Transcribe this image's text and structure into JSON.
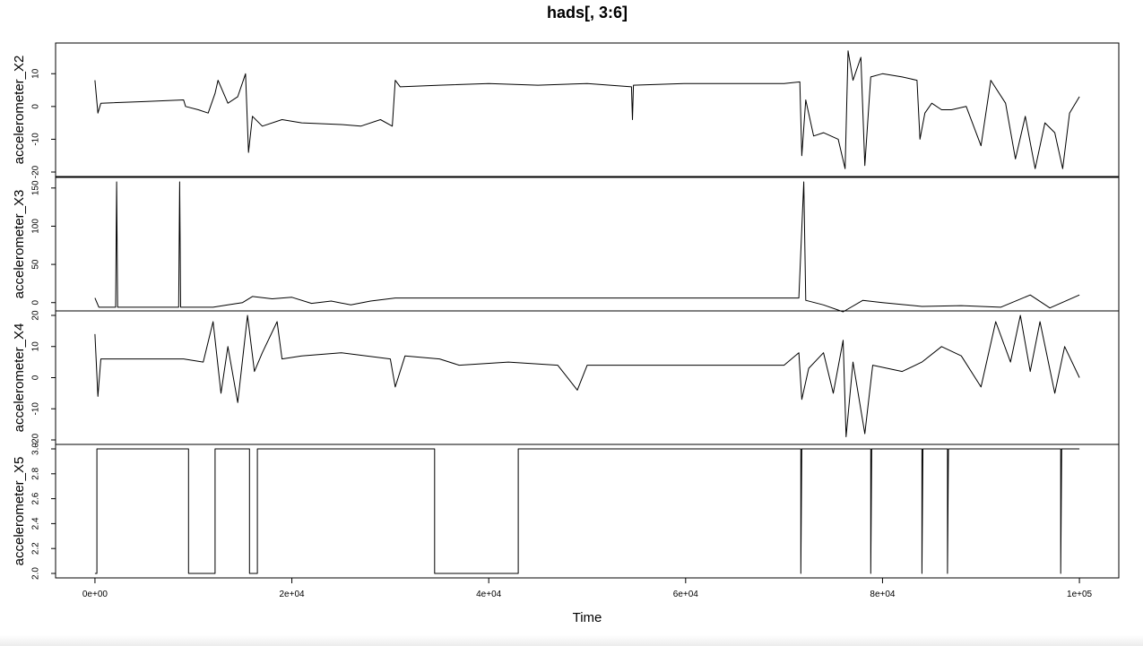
{
  "chart_data": {
    "type": "line",
    "title": "hads[, 3:6]",
    "xlabel": "Time",
    "xlim": [
      -4000,
      104000
    ],
    "x_ticks": [
      {
        "value": 0,
        "label": "0e+00"
      },
      {
        "value": 20000,
        "label": "2e+04"
      },
      {
        "value": 40000,
        "label": "4e+04"
      },
      {
        "value": 60000,
        "label": "6e+04"
      },
      {
        "value": 80000,
        "label": "8e+04"
      },
      {
        "value": 100000,
        "label": "1e+05"
      }
    ],
    "panels": [
      {
        "name": "accelerometer_X2",
        "ylabel": "accelerometer_X2",
        "ylim": [
          -20,
          18
        ],
        "y_ticks": [
          {
            "value": -20,
            "label": "-20"
          },
          {
            "value": -10,
            "label": "-10"
          },
          {
            "value": 0,
            "label": "0"
          },
          {
            "value": 10,
            "label": "10"
          }
        ],
        "series": [
          {
            "x": 0,
            "y": 8
          },
          {
            "x": 300,
            "y": -2
          },
          {
            "x": 600,
            "y": 1
          },
          {
            "x": 5000,
            "y": 1.5
          },
          {
            "x": 9000,
            "y": 2
          },
          {
            "x": 9200,
            "y": 0
          },
          {
            "x": 10500,
            "y": -1
          },
          {
            "x": 11500,
            "y": -2
          },
          {
            "x": 12200,
            "y": 4
          },
          {
            "x": 12500,
            "y": 8
          },
          {
            "x": 13500,
            "y": 1
          },
          {
            "x": 14500,
            "y": 3
          },
          {
            "x": 15300,
            "y": 10
          },
          {
            "x": 15600,
            "y": -14
          },
          {
            "x": 16000,
            "y": -3
          },
          {
            "x": 17000,
            "y": -6
          },
          {
            "x": 19000,
            "y": -4
          },
          {
            "x": 21000,
            "y": -5
          },
          {
            "x": 25000,
            "y": -5.5
          },
          {
            "x": 27000,
            "y": -6
          },
          {
            "x": 29000,
            "y": -4
          },
          {
            "x": 30200,
            "y": -6
          },
          {
            "x": 30500,
            "y": 8
          },
          {
            "x": 31000,
            "y": 6
          },
          {
            "x": 35000,
            "y": 6.5
          },
          {
            "x": 40000,
            "y": 7
          },
          {
            "x": 45000,
            "y": 6.5
          },
          {
            "x": 50000,
            "y": 7
          },
          {
            "x": 54500,
            "y": 6
          },
          {
            "x": 54600,
            "y": -4
          },
          {
            "x": 54700,
            "y": 6.5
          },
          {
            "x": 60000,
            "y": 7
          },
          {
            "x": 65000,
            "y": 7
          },
          {
            "x": 70000,
            "y": 7
          },
          {
            "x": 71600,
            "y": 7.5
          },
          {
            "x": 71800,
            "y": -15
          },
          {
            "x": 72200,
            "y": 2
          },
          {
            "x": 73000,
            "y": -9
          },
          {
            "x": 74000,
            "y": -8
          },
          {
            "x": 75500,
            "y": -10
          },
          {
            "x": 76200,
            "y": -19
          },
          {
            "x": 76500,
            "y": 17
          },
          {
            "x": 77000,
            "y": 8
          },
          {
            "x": 77800,
            "y": 15
          },
          {
            "x": 78200,
            "y": -18
          },
          {
            "x": 78800,
            "y": 9
          },
          {
            "x": 80000,
            "y": 10
          },
          {
            "x": 82000,
            "y": 9
          },
          {
            "x": 83500,
            "y": 8
          },
          {
            "x": 83800,
            "y": -10
          },
          {
            "x": 84300,
            "y": -2
          },
          {
            "x": 85000,
            "y": 1
          },
          {
            "x": 86000,
            "y": -1
          },
          {
            "x": 87000,
            "y": -1
          },
          {
            "x": 88500,
            "y": 0
          },
          {
            "x": 89500,
            "y": -8
          },
          {
            "x": 90000,
            "y": -12
          },
          {
            "x": 91000,
            "y": 8
          },
          {
            "x": 92500,
            "y": 1
          },
          {
            "x": 93500,
            "y": -16
          },
          {
            "x": 94500,
            "y": -3
          },
          {
            "x": 95500,
            "y": -19
          },
          {
            "x": 96500,
            "y": -5
          },
          {
            "x": 97500,
            "y": -8
          },
          {
            "x": 98300,
            "y": -19
          },
          {
            "x": 99000,
            "y": -2
          },
          {
            "x": 100000,
            "y": 3
          }
        ]
      },
      {
        "name": "accelerometer_X3",
        "ylabel": "accelerometer_X3",
        "ylim": [
          -5,
          158
        ],
        "y_ticks": [
          {
            "value": 0,
            "label": "0"
          },
          {
            "value": 50,
            "label": "50"
          },
          {
            "value": 100,
            "label": "100"
          },
          {
            "value": 150,
            "label": "150"
          }
        ],
        "series": [
          {
            "x": 0,
            "y": 6
          },
          {
            "x": 400,
            "y": -6
          },
          {
            "x": 2100,
            "y": -6
          },
          {
            "x": 2200,
            "y": 158
          },
          {
            "x": 2300,
            "y": -6
          },
          {
            "x": 8500,
            "y": -6
          },
          {
            "x": 8600,
            "y": 158
          },
          {
            "x": 8700,
            "y": -6
          },
          {
            "x": 12000,
            "y": -6
          },
          {
            "x": 13500,
            "y": -3
          },
          {
            "x": 15000,
            "y": 0
          },
          {
            "x": 16000,
            "y": 8
          },
          {
            "x": 18000,
            "y": 5
          },
          {
            "x": 20000,
            "y": 7
          },
          {
            "x": 22000,
            "y": -1
          },
          {
            "x": 24000,
            "y": 2
          },
          {
            "x": 26000,
            "y": -3
          },
          {
            "x": 28000,
            "y": 2
          },
          {
            "x": 30500,
            "y": 6
          },
          {
            "x": 40000,
            "y": 6
          },
          {
            "x": 50000,
            "y": 6
          },
          {
            "x": 60000,
            "y": 6
          },
          {
            "x": 71500,
            "y": 6
          },
          {
            "x": 72000,
            "y": 158
          },
          {
            "x": 72200,
            "y": 3
          },
          {
            "x": 74000,
            "y": -3
          },
          {
            "x": 76000,
            "y": -12
          },
          {
            "x": 78000,
            "y": 3
          },
          {
            "x": 80000,
            "y": 0
          },
          {
            "x": 84000,
            "y": -5
          },
          {
            "x": 88000,
            "y": -4
          },
          {
            "x": 92000,
            "y": -6
          },
          {
            "x": 95000,
            "y": 10
          },
          {
            "x": 97000,
            "y": -7
          },
          {
            "x": 100000,
            "y": 10
          }
        ]
      },
      {
        "name": "accelerometer_X4",
        "ylabel": "accelerometer_X4",
        "ylim": [
          -20,
          20
        ],
        "y_ticks": [
          {
            "value": -20,
            "label": "-20"
          },
          {
            "value": -10,
            "label": "-10"
          },
          {
            "value": 0,
            "label": "0"
          },
          {
            "value": 10,
            "label": "10"
          },
          {
            "value": 20,
            "label": "20"
          }
        ],
        "series": [
          {
            "x": 0,
            "y": 14
          },
          {
            "x": 300,
            "y": -6
          },
          {
            "x": 600,
            "y": 6
          },
          {
            "x": 5000,
            "y": 6
          },
          {
            "x": 9000,
            "y": 6
          },
          {
            "x": 11000,
            "y": 5
          },
          {
            "x": 12000,
            "y": 18
          },
          {
            "x": 12800,
            "y": -5
          },
          {
            "x": 13500,
            "y": 10
          },
          {
            "x": 14500,
            "y": -8
          },
          {
            "x": 15500,
            "y": 20
          },
          {
            "x": 16200,
            "y": 2
          },
          {
            "x": 17000,
            "y": 8
          },
          {
            "x": 18500,
            "y": 18
          },
          {
            "x": 19000,
            "y": 6
          },
          {
            "x": 21000,
            "y": 7
          },
          {
            "x": 25000,
            "y": 8
          },
          {
            "x": 30000,
            "y": 6
          },
          {
            "x": 30500,
            "y": -3
          },
          {
            "x": 31500,
            "y": 7
          },
          {
            "x": 35000,
            "y": 6
          },
          {
            "x": 37000,
            "y": 4
          },
          {
            "x": 42000,
            "y": 5
          },
          {
            "x": 47000,
            "y": 4
          },
          {
            "x": 49000,
            "y": -4
          },
          {
            "x": 50000,
            "y": 4
          },
          {
            "x": 55000,
            "y": 4
          },
          {
            "x": 60000,
            "y": 4
          },
          {
            "x": 65000,
            "y": 4
          },
          {
            "x": 70000,
            "y": 4
          },
          {
            "x": 71500,
            "y": 8
          },
          {
            "x": 71800,
            "y": -7
          },
          {
            "x": 72500,
            "y": 3
          },
          {
            "x": 74000,
            "y": 8
          },
          {
            "x": 75000,
            "y": -5
          },
          {
            "x": 76000,
            "y": 12
          },
          {
            "x": 76300,
            "y": -19
          },
          {
            "x": 77000,
            "y": 5
          },
          {
            "x": 78200,
            "y": -18
          },
          {
            "x": 79000,
            "y": 4
          },
          {
            "x": 82000,
            "y": 2
          },
          {
            "x": 84000,
            "y": 5
          },
          {
            "x": 86000,
            "y": 10
          },
          {
            "x": 88000,
            "y": 7
          },
          {
            "x": 90000,
            "y": -3
          },
          {
            "x": 91500,
            "y": 18
          },
          {
            "x": 93000,
            "y": 5
          },
          {
            "x": 94000,
            "y": 20
          },
          {
            "x": 95000,
            "y": 2
          },
          {
            "x": 96000,
            "y": 18
          },
          {
            "x": 97500,
            "y": -5
          },
          {
            "x": 98500,
            "y": 10
          },
          {
            "x": 100000,
            "y": 0
          }
        ]
      },
      {
        "name": "accelerometer_X5",
        "ylabel": "accelerometer_X5",
        "ylim": [
          2.0,
          3.0
        ],
        "y_ticks": [
          {
            "value": 2.0,
            "label": "2.0"
          },
          {
            "value": 2.2,
            "label": "2.2"
          },
          {
            "value": 2.4,
            "label": "2.4"
          },
          {
            "value": 2.6,
            "label": "2.6"
          },
          {
            "value": 2.8,
            "label": "2.8"
          },
          {
            "value": 3.0,
            "label": "3.0"
          }
        ],
        "series": [
          {
            "x": 0,
            "y": 2.0
          },
          {
            "x": 200,
            "y": 2.0
          },
          {
            "x": 200,
            "y": 3.0
          },
          {
            "x": 9500,
            "y": 3.0
          },
          {
            "x": 9500,
            "y": 2.0
          },
          {
            "x": 12200,
            "y": 2.0
          },
          {
            "x": 12200,
            "y": 3.0
          },
          {
            "x": 15700,
            "y": 3.0
          },
          {
            "x": 15700,
            "y": 2.0
          },
          {
            "x": 16500,
            "y": 2.0
          },
          {
            "x": 16500,
            "y": 3.0
          },
          {
            "x": 34500,
            "y": 3.0
          },
          {
            "x": 34500,
            "y": 2.0
          },
          {
            "x": 43000,
            "y": 2.0
          },
          {
            "x": 43000,
            "y": 3.0
          },
          {
            "x": 71700,
            "y": 3.0
          },
          {
            "x": 71700,
            "y": 2.0
          },
          {
            "x": 71800,
            "y": 3.0
          },
          {
            "x": 78800,
            "y": 3.0
          },
          {
            "x": 78800,
            "y": 2.0
          },
          {
            "x": 78900,
            "y": 3.0
          },
          {
            "x": 84000,
            "y": 3.0
          },
          {
            "x": 84000,
            "y": 2.0
          },
          {
            "x": 84100,
            "y": 3.0
          },
          {
            "x": 86600,
            "y": 3.0
          },
          {
            "x": 86600,
            "y": 2.0
          },
          {
            "x": 86700,
            "y": 3.0
          },
          {
            "x": 98100,
            "y": 3.0
          },
          {
            "x": 98100,
            "y": 2.0
          },
          {
            "x": 98200,
            "y": 3.0
          },
          {
            "x": 100000,
            "y": 3.0
          }
        ]
      }
    ]
  }
}
